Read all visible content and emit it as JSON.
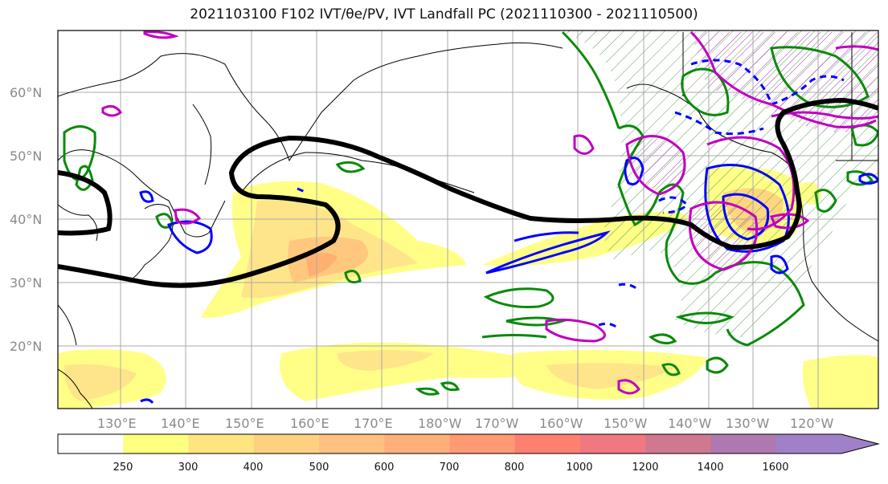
{
  "title": "2021103100 F102 IVT/θe/PV, IVT Landfall PC (2021110300 - 2021110500)",
  "lat_labels": [
    "60°N",
    "50°N",
    "40°N",
    "30°N",
    "20°N"
  ],
  "lon_labels": [
    "130°E",
    "140°E",
    "150°E",
    "160°E",
    "170°E",
    "180°W",
    "170°W",
    "160°W",
    "150°W",
    "140°W",
    "130°W",
    "120°W"
  ],
  "colorbar": {
    "ticks": [
      "250",
      "300",
      "400",
      "500",
      "600",
      "700",
      "800",
      "1000",
      "1200",
      "1400",
      "1600"
    ],
    "colors": [
      "#ffffff",
      "#ffff80",
      "#ffe480",
      "#ffd080",
      "#ffc080",
      "#ffb07a",
      "#ff9a72",
      "#ff8070",
      "#f07880",
      "#d07890",
      "#b078b0",
      "#a080c8"
    ]
  },
  "contour_colors": {
    "jet": "#000000",
    "theta_e": "#008000",
    "pv_negative": "#0000ff",
    "pv_positive": "#c000c0"
  }
}
